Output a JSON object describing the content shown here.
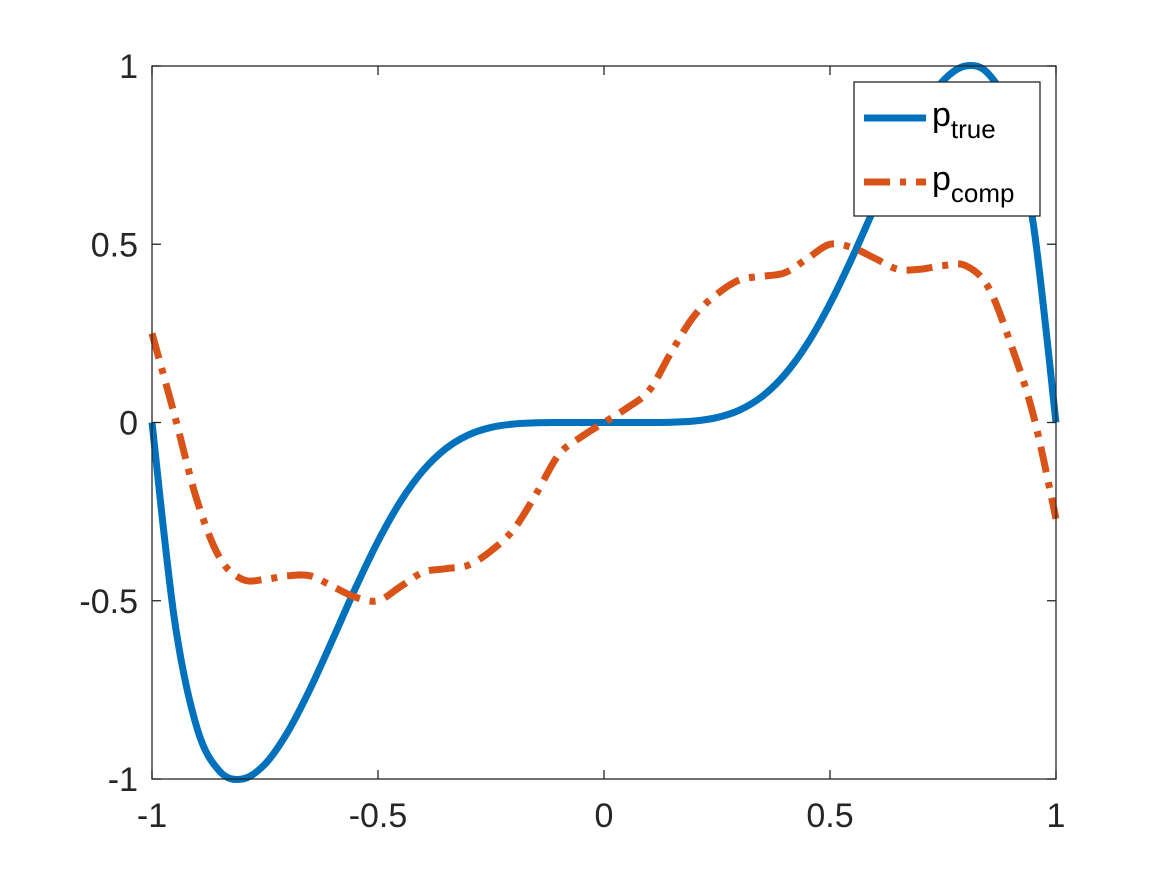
{
  "chart_data": {
    "type": "line",
    "title": "",
    "xlabel": "",
    "ylabel": "",
    "xlim": [
      -1,
      1
    ],
    "ylim": [
      -1,
      1
    ],
    "xticks": [
      -1,
      -0.5,
      0,
      0.5,
      1
    ],
    "yticks": [
      -1,
      -0.5,
      0,
      0.5,
      1
    ],
    "xtick_labels": [
      "-1",
      "-0.5",
      "0",
      "0.5",
      "1"
    ],
    "ytick_labels": [
      "-1",
      "-0.5",
      "0",
      "0.5",
      "1"
    ],
    "grid": false,
    "legend_position": "top-right",
    "series": [
      {
        "name_base": "p",
        "name_sub": "true",
        "color": "#0072BD",
        "style": "solid",
        "x": [
          -1,
          -0.95,
          -0.9,
          -0.85,
          -0.8,
          -0.75,
          -0.7,
          -0.65,
          -0.6,
          -0.55,
          -0.5,
          -0.45,
          -0.4,
          -0.35,
          -0.3,
          -0.25,
          -0.2,
          -0.15,
          -0.1,
          -0.05,
          0,
          0.05,
          0.1,
          0.15,
          0.2,
          0.25,
          0.3,
          0.35,
          0.4,
          0.45,
          0.5,
          0.55,
          0.6,
          0.65,
          0.7,
          0.75,
          0.8,
          0.85,
          0.9,
          0.95,
          1
        ],
        "y": [
          0,
          -0.5552,
          -0.8587,
          -0.9787,
          -1.0,
          -0.9583,
          -0.8687,
          -0.7468,
          -0.6075,
          -0.465,
          -0.3333,
          -0.2212,
          -0.1344,
          -0.0733,
          -0.0348,
          -0.0138,
          -0.0042,
          -0.0008,
          -0.0001,
          0,
          0,
          0,
          0.0001,
          0.0008,
          0.0042,
          0.0138,
          0.0348,
          0.0733,
          0.1344,
          0.2212,
          0.3333,
          0.465,
          0.6075,
          0.7468,
          0.8687,
          0.9583,
          1.0,
          0.9787,
          0.8587,
          0.5552,
          0
        ]
      },
      {
        "name_base": "p",
        "name_sub": "comp",
        "color": "#D95319",
        "style": "dash-dot",
        "x": [
          -1,
          -0.95,
          -0.9,
          -0.85,
          -0.8,
          -0.75,
          -0.7,
          -0.65,
          -0.6,
          -0.55,
          -0.5,
          -0.45,
          -0.4,
          -0.35,
          -0.3,
          -0.25,
          -0.2,
          -0.15,
          -0.1,
          -0.05,
          0,
          0.05,
          0.1,
          0.15,
          0.2,
          0.25,
          0.3,
          0.35,
          0.4,
          0.45,
          0.5,
          0.55,
          0.6,
          0.65,
          0.7,
          0.75,
          0.8,
          0.85,
          0.9,
          0.95,
          1
        ],
        "y": [
          0.25,
          0.02,
          -0.22,
          -0.38,
          -0.44,
          -0.44,
          -0.43,
          -0.43,
          -0.46,
          -0.49,
          -0.5,
          -0.46,
          -0.42,
          -0.41,
          -0.4,
          -0.36,
          -0.3,
          -0.2,
          -0.09,
          -0.04,
          0,
          0.04,
          0.09,
          0.2,
          0.3,
          0.36,
          0.4,
          0.41,
          0.42,
          0.46,
          0.5,
          0.49,
          0.46,
          0.43,
          0.43,
          0.44,
          0.44,
          0.38,
          0.22,
          0.02,
          -0.27
        ]
      }
    ]
  }
}
